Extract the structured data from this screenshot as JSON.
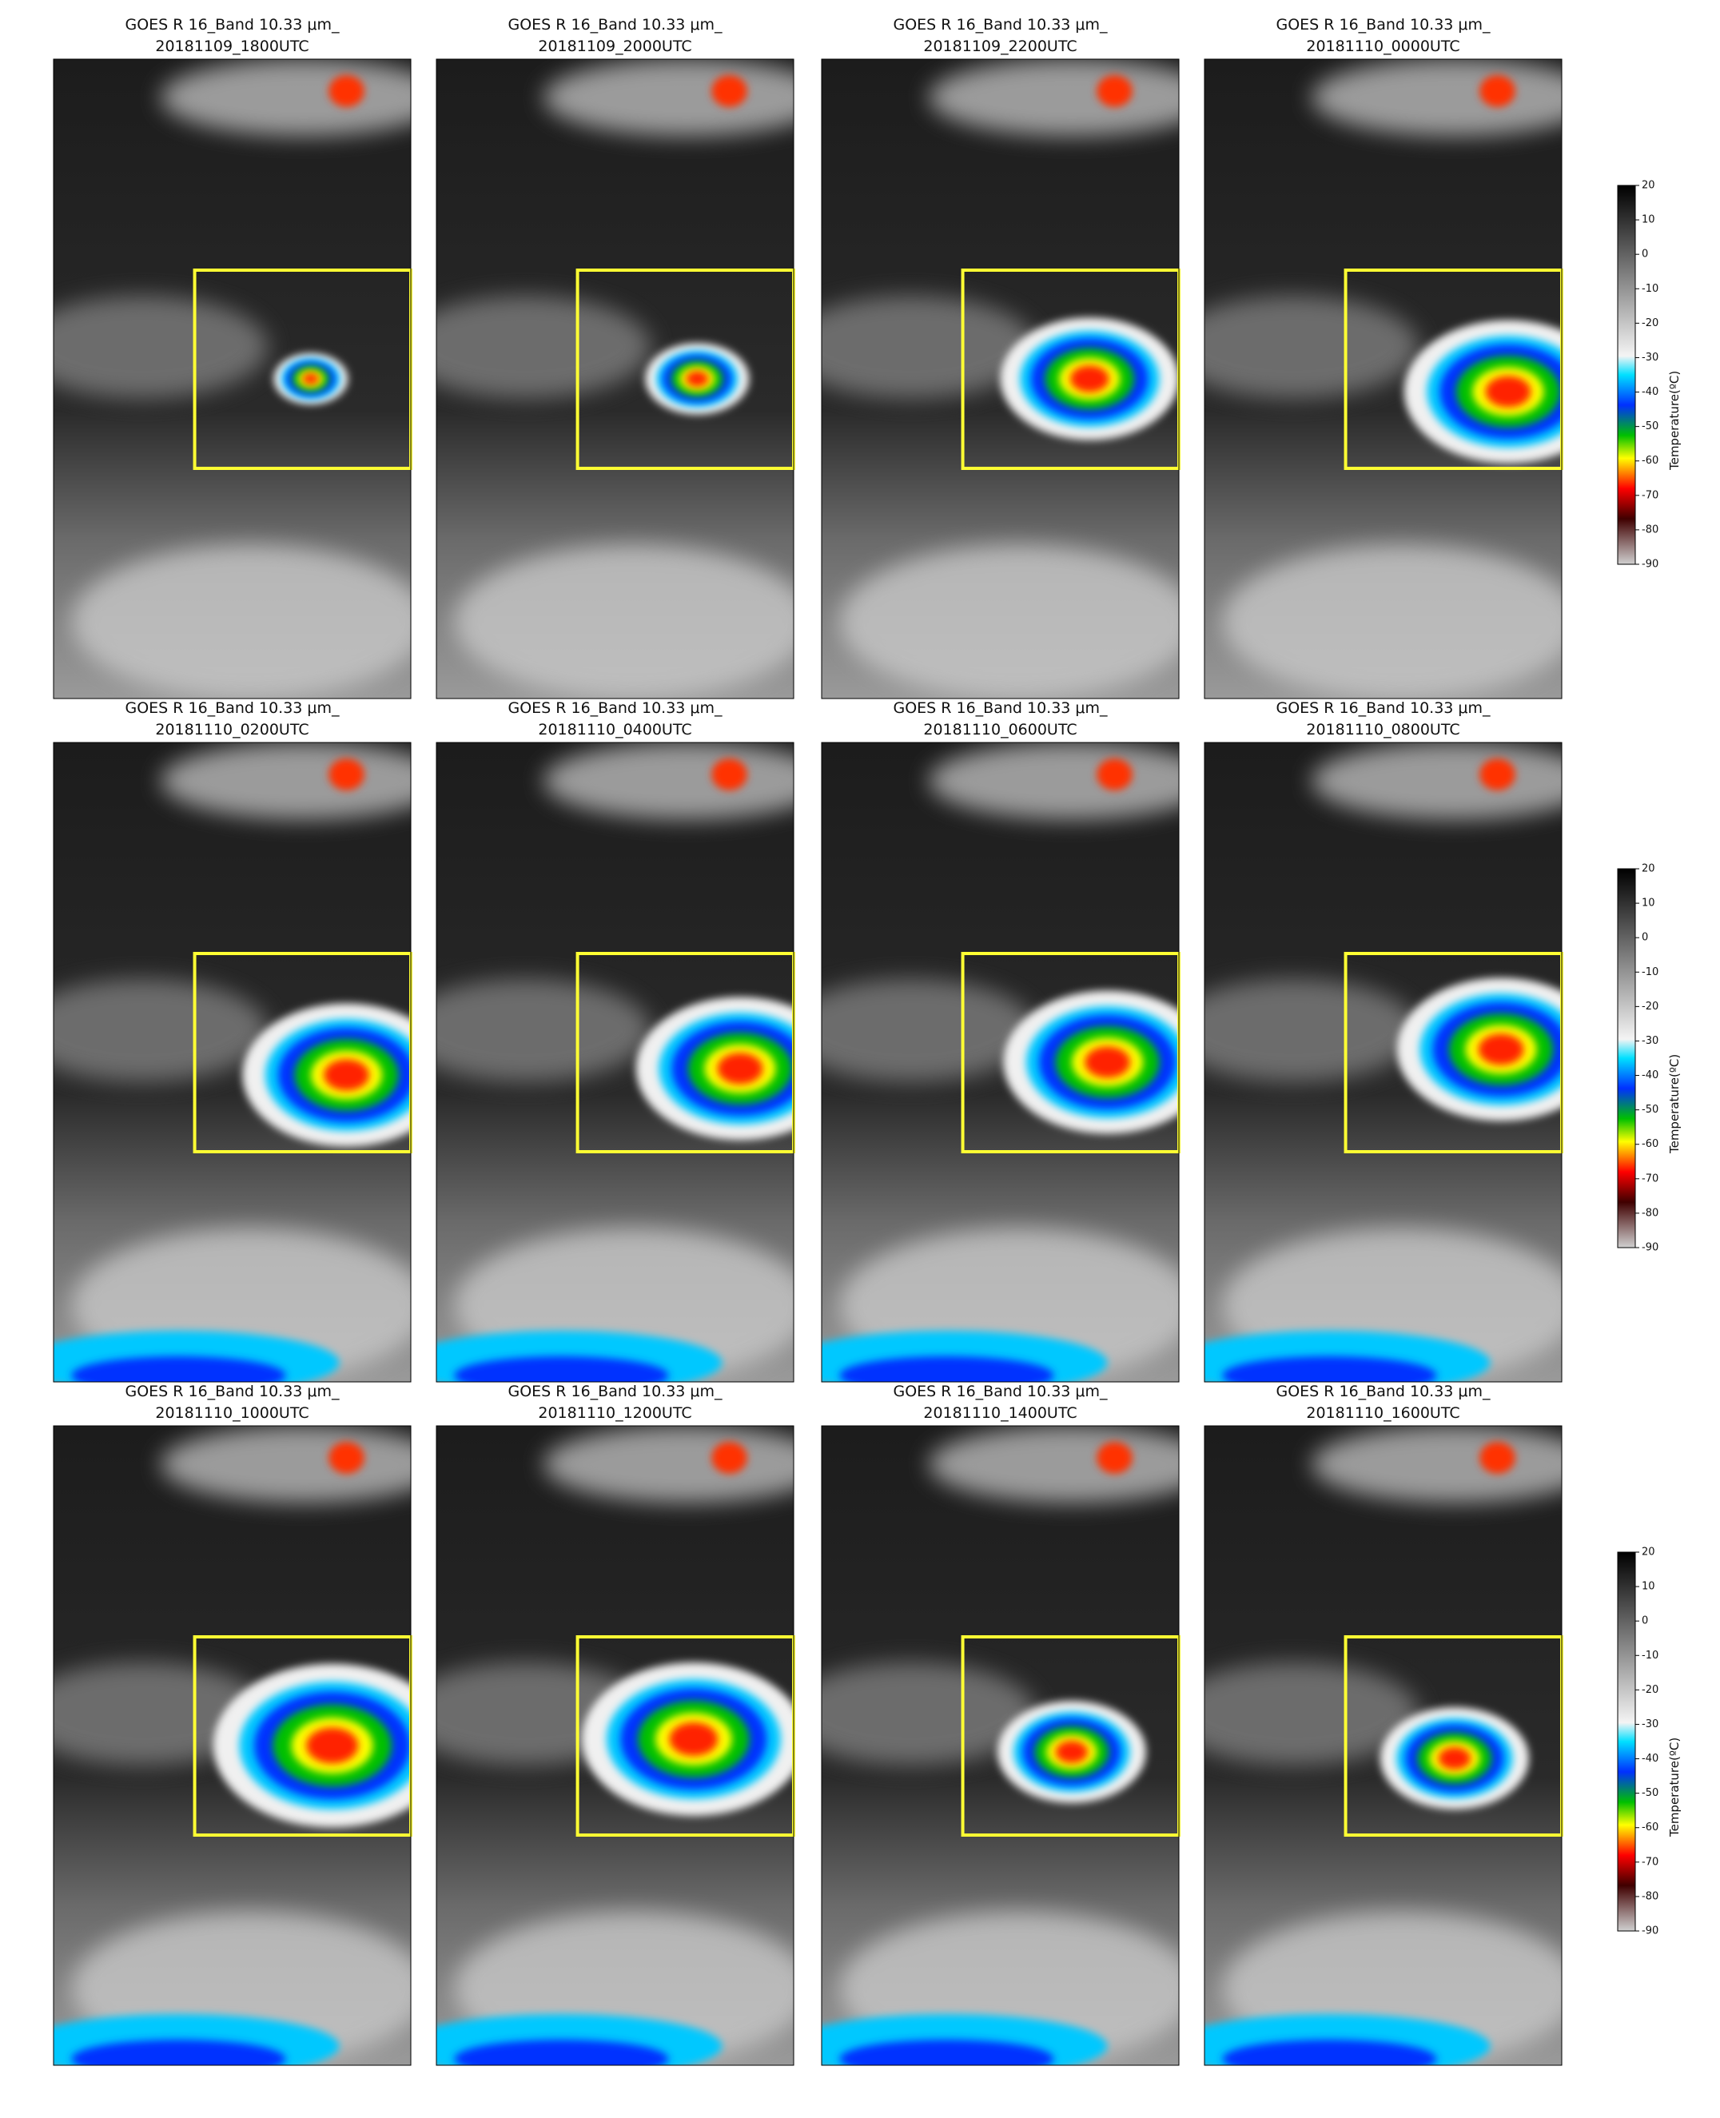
{
  "panels": [
    {
      "title": "GOES R 16_Band 10.33 μm_",
      "time": "20181109_1800UTC"
    },
    {
      "title": "GOES R 16_Band 10.33 μm_",
      "time": "20181109_2000UTC"
    },
    {
      "title": "GOES R 16_Band 10.33 μm_",
      "time": "20181109_2200UTC"
    },
    {
      "title": "GOES R 16_Band 10.33 μm_",
      "time": "20181110_0000UTC"
    },
    {
      "title": "GOES R 16_Band 10.33 μm_",
      "time": "20181110_0200UTC"
    },
    {
      "title": "GOES R 16_Band 10.33 μm_",
      "time": "20181110_0400UTC"
    },
    {
      "title": "GOES R 16_Band 10.33 μm_",
      "time": "20181110_0600UTC"
    },
    {
      "title": "GOES R 16_Band 10.33 μm_",
      "time": "20181110_0800UTC"
    },
    {
      "title": "GOES R 16_Band 10.33 μm_",
      "time": "20181110_1000UTC"
    },
    {
      "title": "GOES R 16_Band 10.33 μm_",
      "time": "20181110_1200UTC"
    },
    {
      "title": "GOES R 16_Band 10.33 μm_",
      "time": "20181110_1400UTC"
    },
    {
      "title": "GOES R 16_Band 10.33 μm_",
      "time": "20181110_1600UTC"
    }
  ],
  "colorbar": {
    "label": "Temperature(ºC)",
    "lim": [
      -90,
      20
    ],
    "ticks": [
      20,
      10,
      0,
      -10,
      -20,
      -30,
      -40,
      -50,
      -60,
      -70,
      -80,
      -90
    ]
  }
}
